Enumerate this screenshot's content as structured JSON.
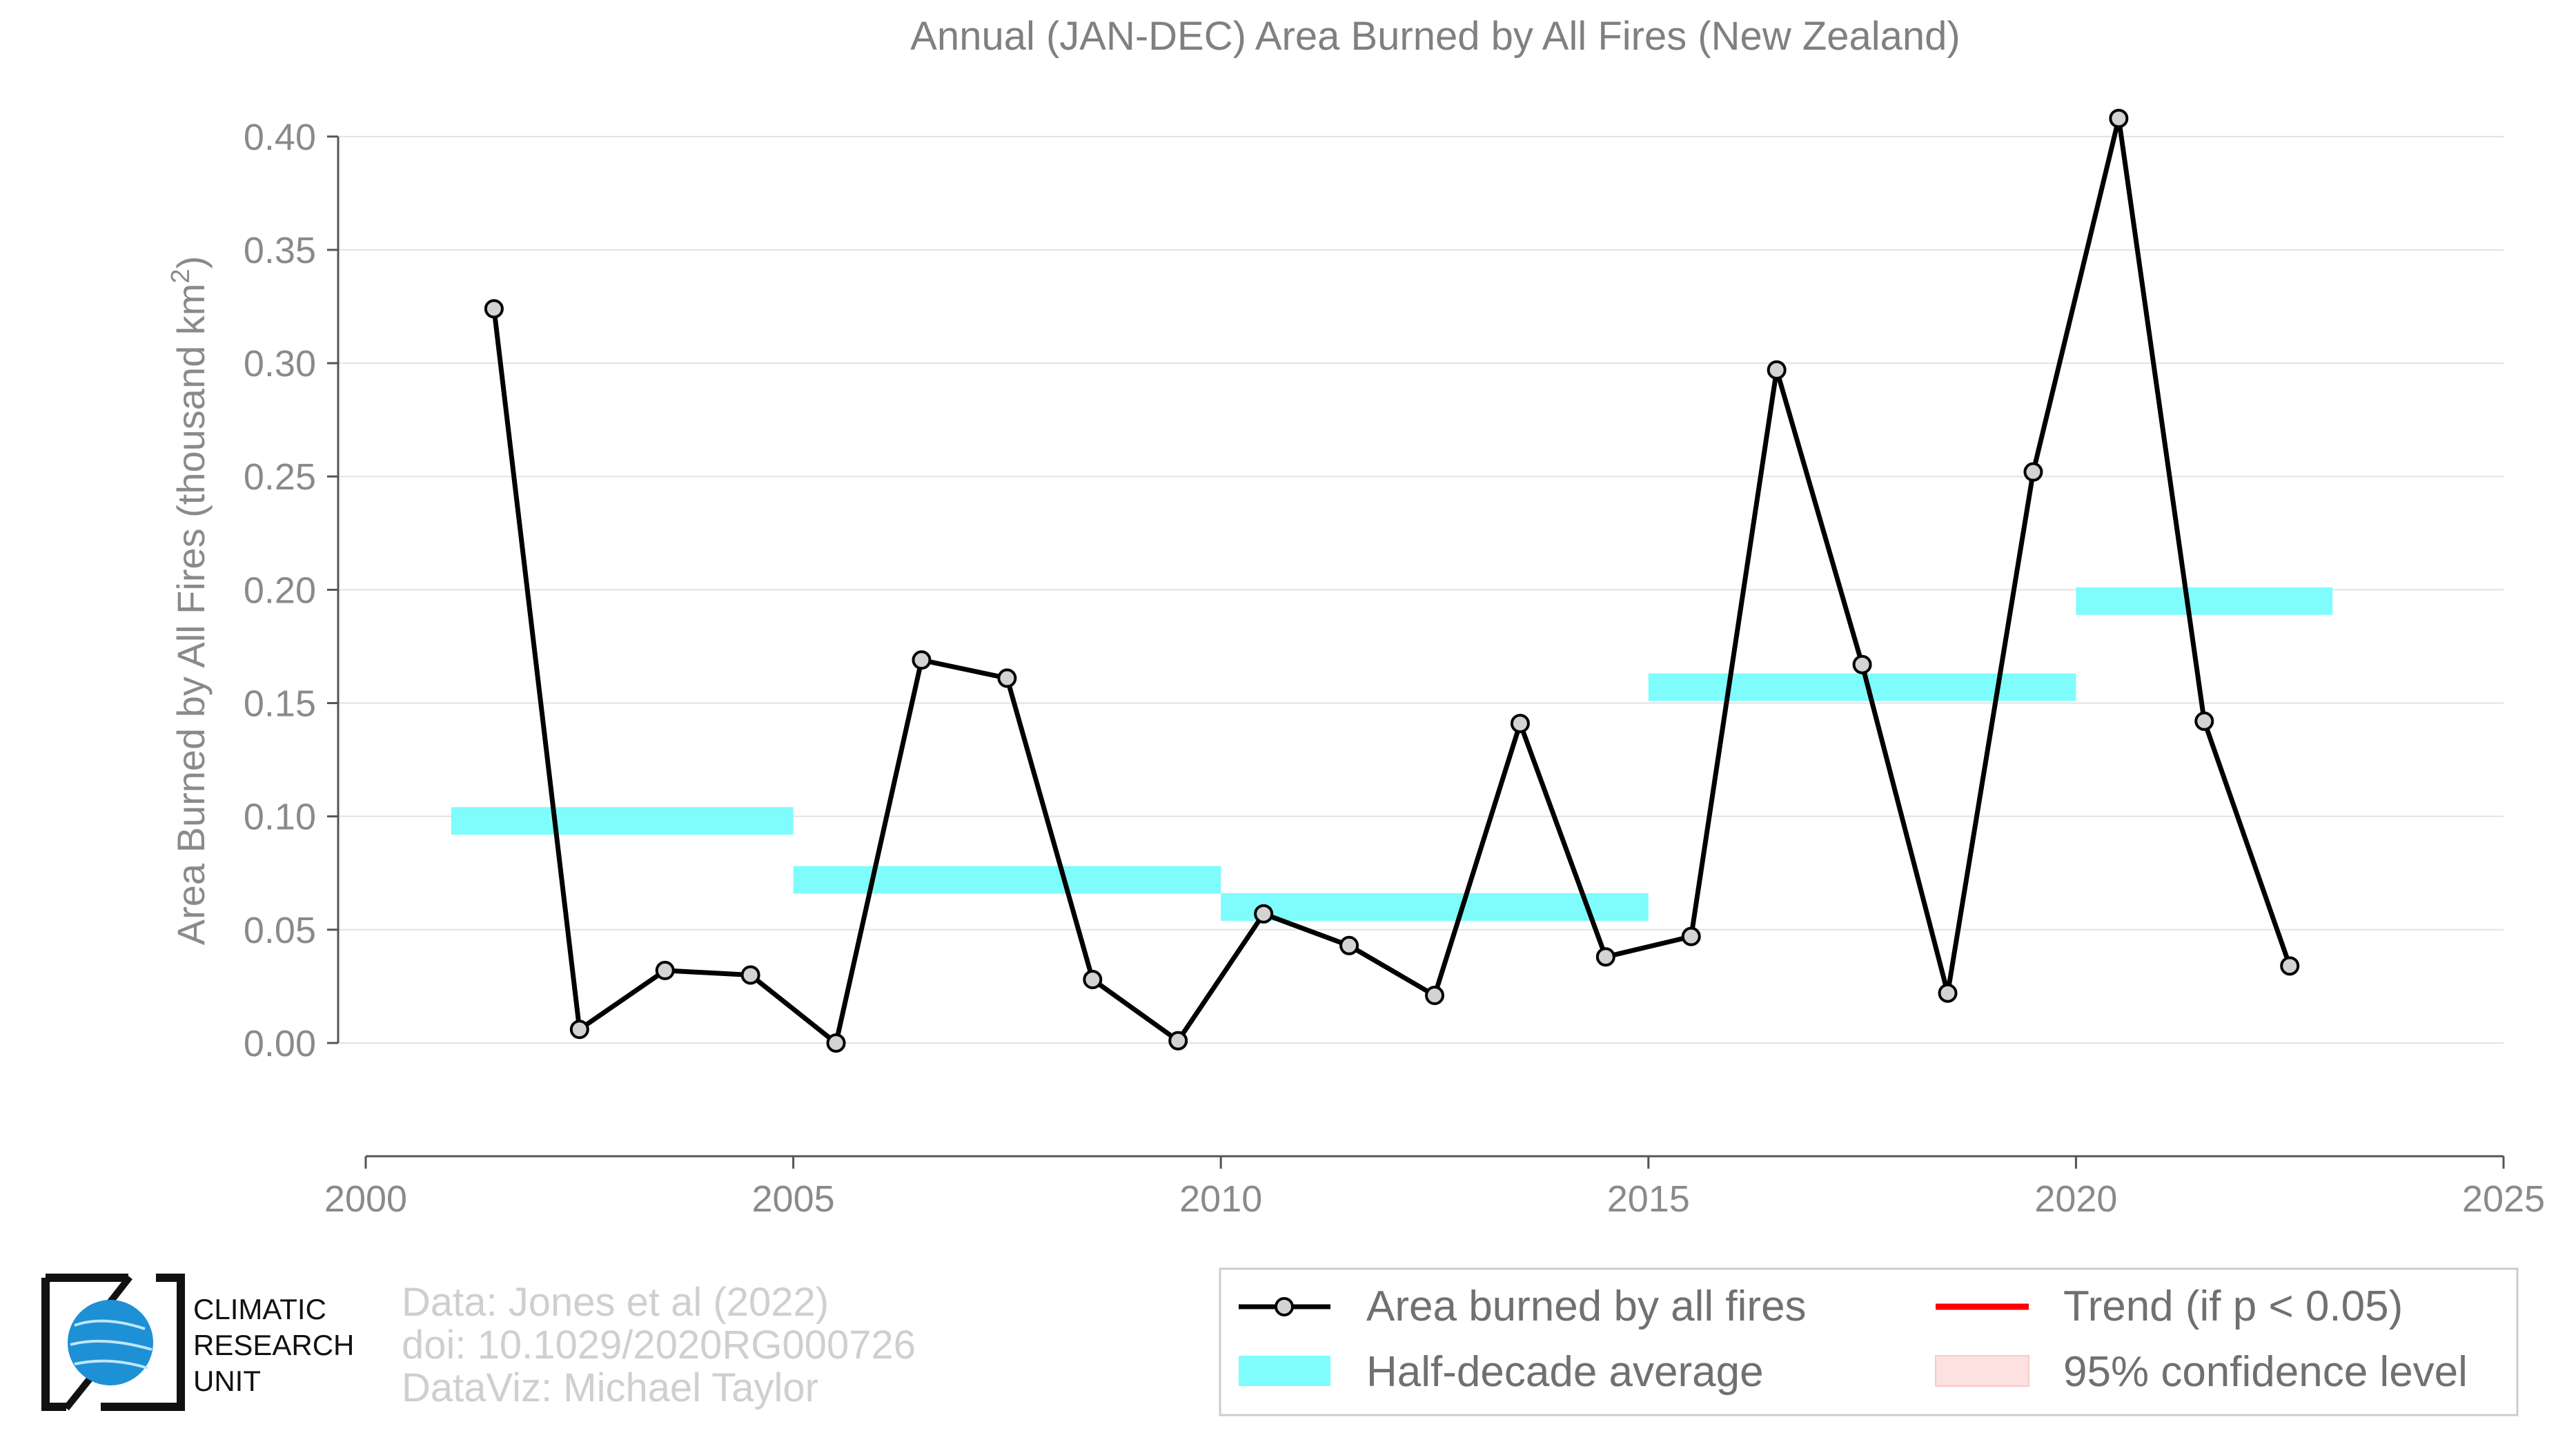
{
  "chart_data": {
    "type": "line",
    "title": "Annual (JAN-DEC) Area Burned by All Fires (New Zealand)",
    "ylabel": "Area Burned by All Fires (thousand km²)",
    "ylabel_main": "Area Burned by All Fires (thousand km",
    "ylabel_sup": "2",
    "ylabel_close": ")",
    "xlabel": "",
    "xlim": [
      2000,
      2025
    ],
    "ylim": [
      -0.032,
      0.41
    ],
    "xticks": [
      2000,
      2005,
      2010,
      2015,
      2020,
      2025
    ],
    "xtick_labels": [
      "2000",
      "2005",
      "2010",
      "2015",
      "2020",
      "2025"
    ],
    "yticks": [
      0.0,
      0.05,
      0.1,
      0.15,
      0.2,
      0.25,
      0.3,
      0.35,
      0.4
    ],
    "ytick_labels": [
      "0.00",
      "0.05",
      "0.10",
      "0.15",
      "0.20",
      "0.25",
      "0.30",
      "0.35",
      "0.40"
    ],
    "grid": "horizontal",
    "legend_position": "bottom-right",
    "series": [
      {
        "name": "Area burned by all fires",
        "color": "#000000",
        "marker_fill": "#d3d3d3",
        "x": [
          2001.5,
          2002.5,
          2003.5,
          2004.5,
          2005.5,
          2006.5,
          2007.5,
          2008.5,
          2009.5,
          2010.5,
          2011.5,
          2012.5,
          2013.5,
          2014.5,
          2015.5,
          2016.5,
          2017.5,
          2018.5,
          2019.5,
          2020.5,
          2021.5,
          2022.5
        ],
        "y": [
          0.324,
          0.006,
          0.032,
          0.03,
          0.0,
          0.169,
          0.161,
          0.028,
          0.001,
          0.057,
          0.043,
          0.021,
          0.141,
          0.038,
          0.047,
          0.297,
          0.167,
          0.022,
          0.252,
          0.408,
          0.142,
          0.034
        ]
      }
    ],
    "half_decade_averages": {
      "name": "Half-decade average",
      "color": "#7ffcfc",
      "segments": [
        {
          "x_start": 2001,
          "x_end": 2005,
          "value": 0.098
        },
        {
          "x_start": 2005,
          "x_end": 2010,
          "value": 0.072
        },
        {
          "x_start": 2010,
          "x_end": 2015,
          "value": 0.06
        },
        {
          "x_start": 2015,
          "x_end": 2020,
          "value": 0.157
        },
        {
          "x_start": 2020,
          "x_end": 2023,
          "value": 0.195
        }
      ]
    },
    "legend": [
      {
        "label": "Area burned by all fires",
        "kind": "line-marker",
        "color": "#000000"
      },
      {
        "label": "Trend (if p < 0.05)",
        "kind": "line",
        "color": "#ff0000"
      },
      {
        "label": "Half-decade average",
        "kind": "patch",
        "color": "#7ffcfc"
      },
      {
        "label": "95% confidence level",
        "kind": "patch",
        "color": "#fde0e0"
      }
    ]
  },
  "credits": {
    "line1": "Data: Jones et al (2022)",
    "line2": "doi: 10.1029/2020RG000726",
    "line3": "DataViz: Michael Taylor"
  },
  "logo": {
    "line1": "CLIMATIC",
    "line2": "RESEARCH",
    "line3": "UNIT",
    "globe_color": "#1e90d6"
  }
}
